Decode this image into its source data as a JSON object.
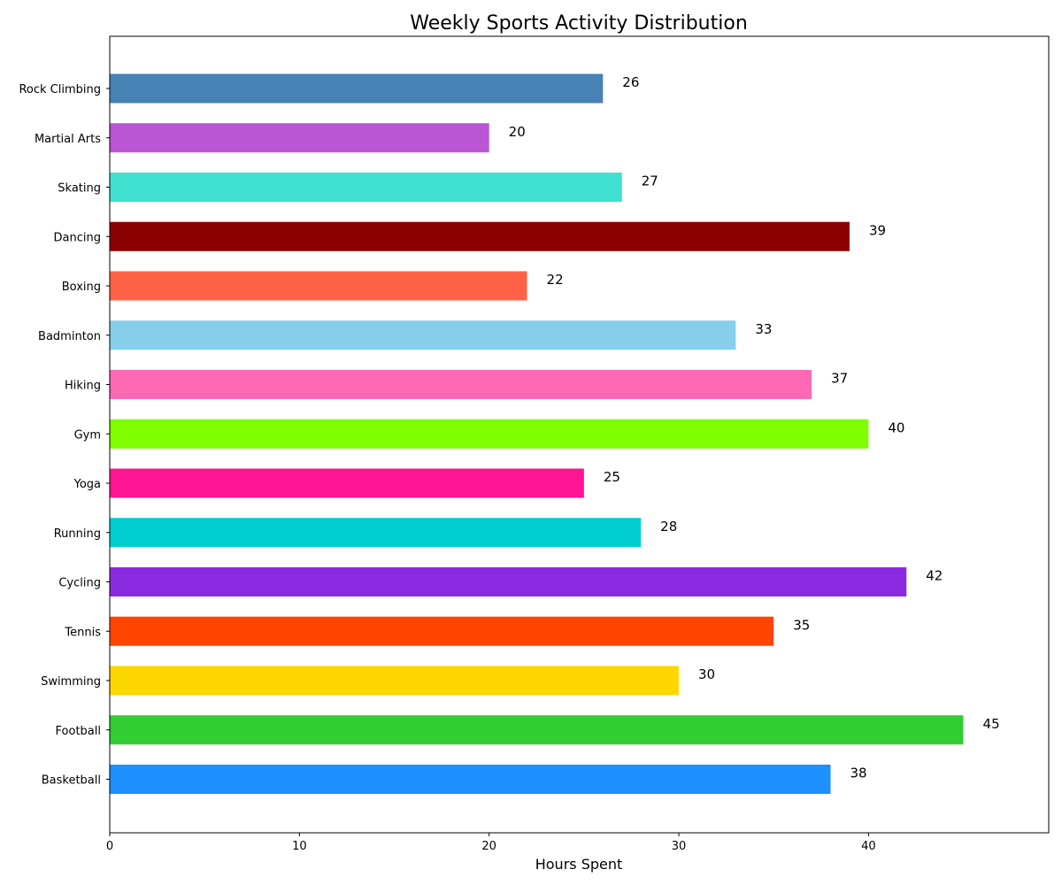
{
  "chart_data": {
    "type": "bar",
    "orientation": "horizontal",
    "title": "Weekly Sports Activity Distribution",
    "xlabel": "Hours Spent",
    "ylabel": "",
    "xlim": [
      0,
      49.5
    ],
    "x_ticks": [
      0,
      10,
      20,
      30,
      40
    ],
    "grid": false,
    "categories": [
      "Basketball",
      "Football",
      "Swimming",
      "Tennis",
      "Cycling",
      "Running",
      "Yoga",
      "Gym",
      "Hiking",
      "Badminton",
      "Boxing",
      "Dancing",
      "Skating",
      "Martial Arts",
      "Rock Climbing"
    ],
    "values": [
      38,
      45,
      30,
      35,
      42,
      28,
      25,
      40,
      37,
      33,
      22,
      39,
      27,
      20,
      26
    ],
    "colors": [
      "#1e90ff",
      "#32cd32",
      "#ffd700",
      "#ff4500",
      "#8a2be2",
      "#00ced1",
      "#ff1493",
      "#7fff00",
      "#ff69b4",
      "#87ceeb",
      "#ff6347",
      "#8b0000",
      "#40e0d0",
      "#ba55d3",
      "#4682b4"
    ],
    "data_labels": [
      "38",
      "45",
      "30",
      "35",
      "42",
      "28",
      "25",
      "40",
      "37",
      "33",
      "22",
      "39",
      "27",
      "20",
      "26"
    ]
  }
}
